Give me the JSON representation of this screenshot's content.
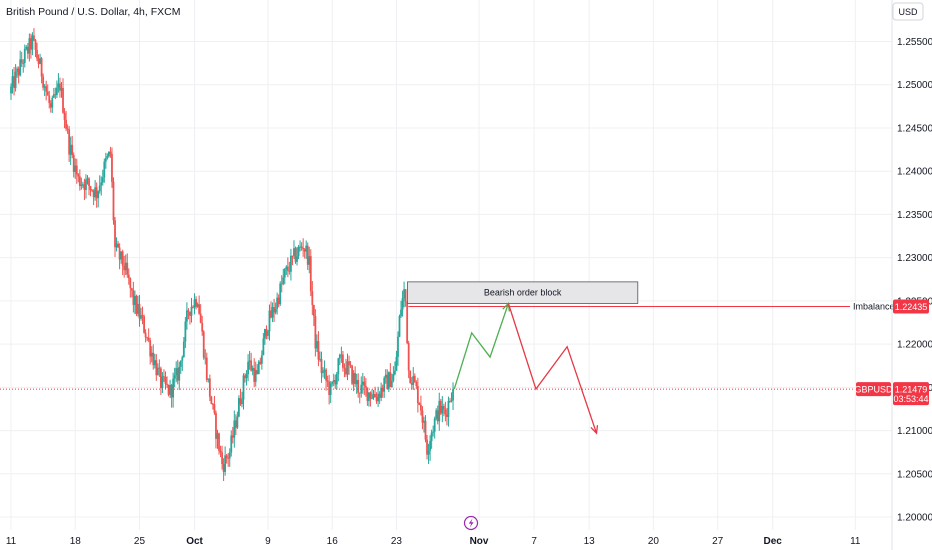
{
  "header": {
    "symbol_title": "British Pound / U.S. Dollar, 4h, FXCM",
    "currency_button": "USD"
  },
  "colors": {
    "up": "#26a69a",
    "down": "#ef5350",
    "grid": "#eef0f3",
    "line_red": "#f23645",
    "projection_green": "#4caf50",
    "projection_red": "#e53945"
  },
  "chart_data": {
    "type": "candlestick",
    "title": "British Pound / U.S. Dollar, 4h, FXCM",
    "ylim": [
      1.1985,
      1.2598
    ],
    "y_ticks": [
      "1.25500",
      "1.25000",
      "1.24500",
      "1.24000",
      "1.23500",
      "1.23000",
      "1.22500",
      "1.22000",
      "1.21500",
      "1.21000",
      "1.20500",
      "1.20000"
    ],
    "x_ticks": [
      {
        "day": 0,
        "label": "11"
      },
      {
        "day": 7,
        "label": "18"
      },
      {
        "day": 14,
        "label": "25"
      },
      {
        "day": 20,
        "label": "Oct",
        "bold": true
      },
      {
        "day": 28,
        "label": "9"
      },
      {
        "day": 35,
        "label": "16"
      },
      {
        "day": 42,
        "label": "23"
      },
      {
        "day": 51,
        "label": "Nov",
        "bold": true
      },
      {
        "day": 57,
        "label": "7"
      },
      {
        "day": 63,
        "label": "13"
      },
      {
        "day": 70,
        "label": "20"
      },
      {
        "day": 77,
        "label": "27"
      },
      {
        "day": 83,
        "label": "Dec",
        "bold": true
      },
      {
        "day": 92,
        "label": "11"
      }
    ],
    "x_range_days": [
      -1.2,
      96
    ],
    "grid": true,
    "price_path": [
      [
        0,
        1.249
      ],
      [
        1.5,
        1.253
      ],
      [
        2.5,
        1.255
      ],
      [
        3.5,
        1.2515
      ],
      [
        4.5,
        1.247
      ],
      [
        5.5,
        1.25
      ],
      [
        6.5,
        1.243
      ],
      [
        7.5,
        1.239
      ],
      [
        8.5,
        1.2385
      ],
      [
        9.5,
        1.2375
      ],
      [
        10.5,
        1.241
      ],
      [
        11,
        1.242
      ],
      [
        11.5,
        1.231
      ],
      [
        12.5,
        1.229
      ],
      [
        13.5,
        1.225
      ],
      [
        14.5,
        1.2225
      ],
      [
        15.5,
        1.219
      ],
      [
        16.5,
        1.2155
      ],
      [
        17.5,
        1.2145
      ],
      [
        18.5,
        1.217
      ],
      [
        19.5,
        1.224
      ],
      [
        20.5,
        1.2255
      ],
      [
        21.5,
        1.2165
      ],
      [
        22.5,
        1.21
      ],
      [
        23.2,
        1.206
      ],
      [
        24,
        1.2075
      ],
      [
        25,
        1.213
      ],
      [
        26,
        1.218
      ],
      [
        27,
        1.216
      ],
      [
        28,
        1.222
      ],
      [
        29,
        1.2245
      ],
      [
        30,
        1.228
      ],
      [
        31,
        1.23
      ],
      [
        32,
        1.2315
      ],
      [
        32.6,
        1.23
      ],
      [
        33.3,
        1.2205
      ],
      [
        34,
        1.217
      ],
      [
        35,
        1.2145
      ],
      [
        36,
        1.218
      ],
      [
        37,
        1.217
      ],
      [
        38,
        1.215
      ],
      [
        39,
        1.2145
      ],
      [
        40,
        1.214
      ],
      [
        41,
        1.2155
      ],
      [
        42,
        1.2165
      ],
      [
        42.6,
        1.224
      ],
      [
        43.1,
        1.2265
      ],
      [
        43.5,
        1.217
      ],
      [
        44,
        1.2158
      ],
      [
        44.8,
        1.213
      ],
      [
        45.5,
        1.208
      ],
      [
        46,
        1.21
      ],
      [
        46.8,
        1.2125
      ],
      [
        47.5,
        1.212
      ],
      [
        48.3,
        1.215
      ]
    ],
    "current_price": "1.21479",
    "current_price_value": 1.21479,
    "countdown": "03:53:44",
    "symbol_label": "GBPUSD",
    "imbalance": {
      "label": "Imbalance",
      "price": "1.22435",
      "value": 1.22435,
      "start_day": 43.3
    },
    "order_block": {
      "label": "Bearish order block",
      "top": 1.2272,
      "bottom": 1.2247,
      "start_day": 43.2,
      "end_day": 68.3
    },
    "projection_green": [
      [
        48.3,
        1.2148
      ],
      [
        50.2,
        1.2213
      ],
      [
        52.2,
        1.2185
      ],
      [
        54.2,
        1.2247
      ]
    ],
    "projection_red": [
      [
        54.2,
        1.2247
      ],
      [
        57.2,
        1.2148
      ],
      [
        60.6,
        1.2197
      ],
      [
        63.8,
        1.2097
      ]
    ]
  }
}
